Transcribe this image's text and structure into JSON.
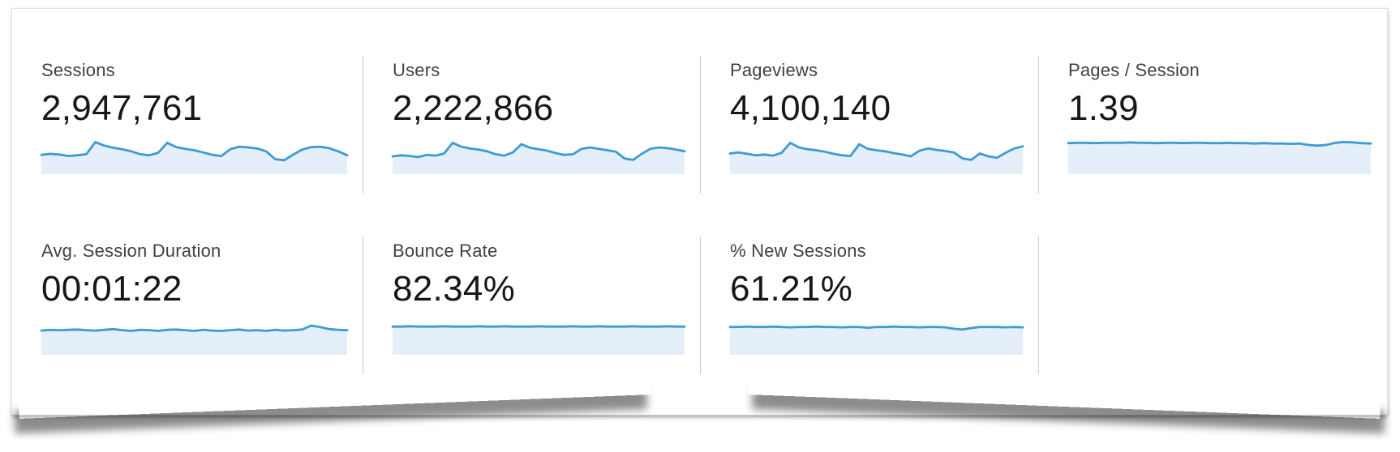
{
  "panel": {
    "cards": [
      {
        "label": "Sessions",
        "value": "2,947,761",
        "spark": [
          0.54,
          0.57,
          0.55,
          0.51,
          0.53,
          0.56,
          0.9,
          0.8,
          0.74,
          0.7,
          0.64,
          0.56,
          0.53,
          0.6,
          0.88,
          0.76,
          0.71,
          0.67,
          0.61,
          0.54,
          0.51,
          0.7,
          0.77,
          0.75,
          0.72,
          0.64,
          0.42,
          0.39,
          0.55,
          0.69,
          0.76,
          0.77,
          0.73,
          0.64,
          0.53
        ]
      },
      {
        "label": "Users",
        "value": "2,222,866",
        "spark": [
          0.5,
          0.53,
          0.51,
          0.48,
          0.54,
          0.52,
          0.58,
          0.88,
          0.77,
          0.72,
          0.69,
          0.64,
          0.56,
          0.52,
          0.61,
          0.84,
          0.74,
          0.7,
          0.66,
          0.59,
          0.54,
          0.56,
          0.71,
          0.75,
          0.71,
          0.67,
          0.63,
          0.44,
          0.4,
          0.57,
          0.71,
          0.75,
          0.73,
          0.69,
          0.64
        ]
      },
      {
        "label": "Pageviews",
        "value": "4,100,140",
        "spark": [
          0.58,
          0.61,
          0.57,
          0.53,
          0.55,
          0.52,
          0.6,
          0.88,
          0.75,
          0.7,
          0.67,
          0.63,
          0.57,
          0.53,
          0.51,
          0.84,
          0.71,
          0.67,
          0.64,
          0.59,
          0.55,
          0.5,
          0.66,
          0.72,
          0.68,
          0.65,
          0.61,
          0.44,
          0.4,
          0.58,
          0.5,
          0.46,
          0.6,
          0.72,
          0.78
        ]
      },
      {
        "label": "Pages / Session",
        "value": "1.39",
        "spark": [
          0.87,
          0.88,
          0.88,
          0.87,
          0.88,
          0.88,
          0.88,
          0.89,
          0.88,
          0.88,
          0.87,
          0.88,
          0.88,
          0.87,
          0.88,
          0.88,
          0.87,
          0.87,
          0.88,
          0.87,
          0.87,
          0.86,
          0.87,
          0.86,
          0.86,
          0.85,
          0.86,
          0.82,
          0.8,
          0.82,
          0.88,
          0.9,
          0.89,
          0.87,
          0.86
        ]
      },
      {
        "label": "Avg. Session Duration",
        "value": "00:01:22",
        "spark": [
          0.68,
          0.7,
          0.69,
          0.7,
          0.71,
          0.69,
          0.68,
          0.7,
          0.72,
          0.69,
          0.67,
          0.7,
          0.69,
          0.67,
          0.7,
          0.71,
          0.69,
          0.67,
          0.7,
          0.68,
          0.67,
          0.69,
          0.71,
          0.68,
          0.69,
          0.67,
          0.7,
          0.68,
          0.69,
          0.71,
          0.82,
          0.78,
          0.72,
          0.7,
          0.69
        ]
      },
      {
        "label": "Bounce Rate",
        "value": "82.34%",
        "spark": [
          0.79,
          0.79,
          0.8,
          0.79,
          0.79,
          0.79,
          0.8,
          0.79,
          0.79,
          0.79,
          0.8,
          0.79,
          0.79,
          0.8,
          0.79,
          0.79,
          0.79,
          0.8,
          0.79,
          0.79,
          0.79,
          0.8,
          0.79,
          0.79,
          0.8,
          0.79,
          0.79,
          0.79,
          0.8,
          0.79,
          0.79,
          0.79,
          0.8,
          0.79,
          0.79
        ]
      },
      {
        "label": "% New Sessions",
        "value": "61.21%",
        "spark": [
          0.78,
          0.78,
          0.79,
          0.78,
          0.78,
          0.79,
          0.78,
          0.77,
          0.78,
          0.78,
          0.79,
          0.78,
          0.78,
          0.77,
          0.78,
          0.78,
          0.76,
          0.78,
          0.78,
          0.79,
          0.78,
          0.78,
          0.77,
          0.78,
          0.78,
          0.77,
          0.73,
          0.71,
          0.75,
          0.78,
          0.78,
          0.78,
          0.77,
          0.78,
          0.77
        ]
      }
    ]
  },
  "colors": {
    "spark_line": "#3e9bd3",
    "spark_fill": "#e4eff9"
  }
}
